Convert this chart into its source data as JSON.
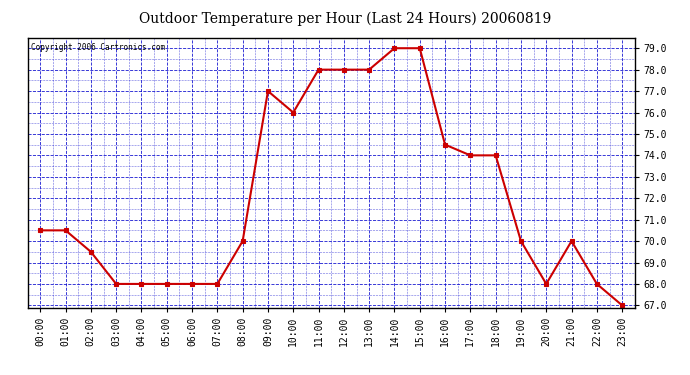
{
  "title": "Outdoor Temperature per Hour (Last 24 Hours) 20060819",
  "copyright_text": "Copyright 2006 Cartronics.com",
  "hours": [
    "00:00",
    "01:00",
    "02:00",
    "03:00",
    "04:00",
    "05:00",
    "06:00",
    "07:00",
    "08:00",
    "09:00",
    "10:00",
    "11:00",
    "12:00",
    "13:00",
    "14:00",
    "15:00",
    "16:00",
    "17:00",
    "18:00",
    "19:00",
    "20:00",
    "21:00",
    "22:00",
    "23:00"
  ],
  "temps": [
    70.5,
    70.5,
    69.5,
    68.0,
    68.0,
    68.0,
    68.0,
    68.0,
    70.0,
    77.0,
    76.0,
    78.0,
    78.0,
    78.0,
    79.0,
    79.0,
    74.5,
    74.0,
    74.0,
    70.0,
    68.0,
    70.0,
    68.0,
    67.0
  ],
  "line_color": "#cc0000",
  "marker": "s",
  "marker_size": 3,
  "bg_color": "#ffffff",
  "plot_bg_color": "#ffffff",
  "grid_color": "#0000cc",
  "title_fontsize": 10,
  "ylim": [
    66.9,
    79.5
  ],
  "yticks": [
    67.0,
    68.0,
    69.0,
    70.0,
    71.0,
    72.0,
    73.0,
    74.0,
    75.0,
    76.0,
    77.0,
    78.0,
    79.0
  ],
  "axis_label_color": "#000000",
  "copyright_fontsize": 5.5,
  "tick_fontsize": 7,
  "title_fontstyle": "normal"
}
